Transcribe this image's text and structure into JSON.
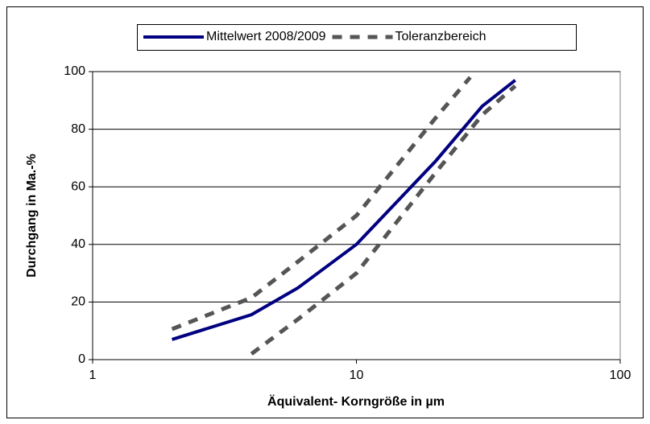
{
  "chart_data": {
    "type": "line",
    "xlabel": "Äquivalent- Korngröße in µm",
    "ylabel": "Durchgang in Ma.-%",
    "xlog": true,
    "xlim": [
      1,
      100
    ],
    "xticks": [
      1,
      10,
      100
    ],
    "ylim": [
      0,
      100
    ],
    "yticks": [
      0,
      20,
      40,
      60,
      80,
      100
    ],
    "grid": true,
    "legend": "top",
    "series": [
      {
        "name": "Mittelwert 2008/2009",
        "color": "#000080",
        "dash": false,
        "x": [
          2,
          4,
          6,
          10,
          20,
          30,
          40
        ],
        "values": [
          7,
          15.6,
          24.9,
          40,
          69,
          88,
          97
        ]
      },
      {
        "name": "Toleranzbereich",
        "color": "#555555",
        "dash": true,
        "x": [
          2,
          4,
          6,
          10,
          20,
          27
        ],
        "values": [
          10.6,
          21.5,
          34,
          50,
          84,
          98
        ]
      },
      {
        "color": "#555555",
        "dash": true,
        "x": [
          4,
          6,
          10,
          20,
          30,
          40
        ],
        "values": [
          2,
          14,
          30,
          65,
          85,
          95
        ]
      }
    ]
  }
}
